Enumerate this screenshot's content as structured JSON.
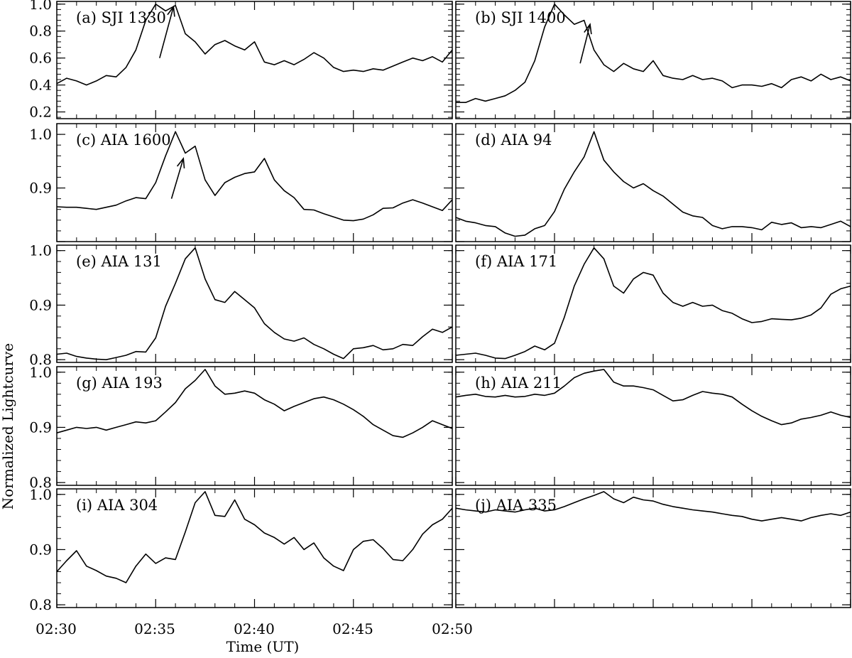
{
  "figure": {
    "ylabel": "Normalized Lightcurve",
    "xlabel": "Time (UT)",
    "x_ticks": [
      "02:30",
      "02:35",
      "02:40",
      "02:45",
      "02:50"
    ]
  },
  "chart_data": [
    {
      "panel": "a",
      "label": "(a) SJI 1330",
      "type": "line",
      "xlabel": "",
      "ylabel": "Normalized Lightcurve",
      "xlim": [
        0,
        20
      ],
      "ylim": [
        0.15,
        1.02
      ],
      "yticks": [
        0.2,
        0.4,
        0.6,
        0.8,
        1.0
      ],
      "ytick_labels": [
        "0.2",
        "0.4",
        "0.6",
        "0.8",
        "1.0"
      ],
      "x": [
        0,
        0.5,
        1,
        1.5,
        2,
        2.5,
        3,
        3.5,
        4,
        4.5,
        5,
        5.5,
        6,
        6.5,
        7,
        7.5,
        8,
        8.5,
        9,
        9.5,
        10,
        10.5,
        11,
        11.5,
        12,
        12.5,
        13,
        13.5,
        14,
        14.5,
        15,
        15.5,
        16,
        16.5,
        17,
        17.5,
        18,
        18.5,
        19,
        19.5,
        20
      ],
      "values": [
        0.41,
        0.45,
        0.43,
        0.4,
        0.43,
        0.47,
        0.46,
        0.53,
        0.66,
        0.88,
        1.0,
        0.95,
        0.99,
        0.78,
        0.72,
        0.63,
        0.7,
        0.73,
        0.69,
        0.66,
        0.72,
        0.57,
        0.55,
        0.58,
        0.55,
        0.59,
        0.64,
        0.6,
        0.53,
        0.5,
        0.51,
        0.5,
        0.52,
        0.51,
        0.54,
        0.57,
        0.6,
        0.58,
        0.61,
        0.57,
        0.66
      ],
      "annotations": [
        {
          "type": "arrow",
          "from": [
            5.2,
            0.6
          ],
          "to": [
            5.9,
            0.98
          ]
        }
      ]
    },
    {
      "panel": "b",
      "label": "(b) SJI 1400",
      "type": "line",
      "xlim": [
        0,
        20
      ],
      "ylim": [
        0.15,
        1.02
      ],
      "yticks": [
        0.2,
        0.4,
        0.6,
        0.8,
        1.0
      ],
      "ytick_labels": [
        "",
        "",
        "",
        "",
        ""
      ],
      "x": [
        0,
        0.5,
        1,
        1.5,
        2,
        2.5,
        3,
        3.5,
        4,
        4.5,
        5,
        5.5,
        6,
        6.5,
        7,
        7.5,
        8,
        8.5,
        9,
        9.5,
        10,
        10.5,
        11,
        11.5,
        12,
        12.5,
        13,
        13.5,
        14,
        14.5,
        15,
        15.5,
        16,
        16.5,
        17,
        17.5,
        18,
        18.5,
        19,
        19.5,
        20
      ],
      "values": [
        0.27,
        0.27,
        0.3,
        0.28,
        0.3,
        0.32,
        0.36,
        0.42,
        0.58,
        0.83,
        1.0,
        0.92,
        0.85,
        0.88,
        0.66,
        0.55,
        0.5,
        0.56,
        0.52,
        0.5,
        0.58,
        0.47,
        0.45,
        0.44,
        0.47,
        0.44,
        0.45,
        0.43,
        0.38,
        0.4,
        0.4,
        0.39,
        0.41,
        0.38,
        0.44,
        0.46,
        0.43,
        0.48,
        0.44,
        0.46,
        0.43
      ],
      "annotations": [
        {
          "type": "arrow",
          "from": [
            6.3,
            0.56
          ],
          "to": [
            6.8,
            0.85
          ]
        }
      ]
    },
    {
      "panel": "c",
      "label": "(c) AIA 1600",
      "type": "line",
      "xlim": [
        0,
        20
      ],
      "ylim": [
        0.8,
        1.02
      ],
      "yticks": [
        0.8,
        0.9,
        1.0
      ],
      "ytick_labels": [
        "",
        "0.9",
        "1.0"
      ],
      "x": [
        0,
        0.5,
        1,
        1.5,
        2,
        2.5,
        3,
        3.5,
        4,
        4.5,
        5,
        5.5,
        6,
        6.5,
        7,
        7.5,
        8,
        8.5,
        9,
        9.5,
        10,
        10.5,
        11,
        11.5,
        12,
        12.5,
        13,
        13.5,
        14,
        14.5,
        15,
        15.5,
        16,
        16.5,
        17,
        17.5,
        18,
        18.5,
        19,
        19.5,
        20
      ],
      "values": [
        0.865,
        0.864,
        0.864,
        0.862,
        0.86,
        0.864,
        0.868,
        0.876,
        0.882,
        0.88,
        0.91,
        0.96,
        1.005,
        0.965,
        0.978,
        0.915,
        0.886,
        0.91,
        0.92,
        0.927,
        0.93,
        0.955,
        0.915,
        0.895,
        0.882,
        0.86,
        0.859,
        0.852,
        0.846,
        0.84,
        0.839,
        0.842,
        0.85,
        0.862,
        0.863,
        0.872,
        0.878,
        0.872,
        0.865,
        0.858,
        0.878
      ],
      "annotations": [
        {
          "type": "arrow",
          "from": [
            5.8,
            0.88
          ],
          "to": [
            6.4,
            0.955
          ]
        }
      ]
    },
    {
      "panel": "d",
      "label": "(d) AIA 94",
      "type": "line",
      "xlim": [
        0,
        20
      ],
      "ylim": [
        0.8,
        1.02
      ],
      "yticks": [
        0.8,
        0.9,
        1.0
      ],
      "ytick_labels": [
        "",
        "",
        ""
      ],
      "x": [
        0,
        0.5,
        1,
        1.5,
        2,
        2.5,
        3,
        3.5,
        4,
        4.5,
        5,
        5.5,
        6,
        6.5,
        7,
        7.5,
        8,
        8.5,
        9,
        9.5,
        10,
        10.5,
        11,
        11.5,
        12,
        12.5,
        13,
        13.5,
        14,
        14.5,
        15,
        15.5,
        16,
        16.5,
        17,
        17.5,
        18,
        18.5,
        19,
        19.5,
        20
      ],
      "values": [
        0.845,
        0.838,
        0.835,
        0.83,
        0.828,
        0.816,
        0.81,
        0.812,
        0.824,
        0.83,
        0.856,
        0.898,
        0.93,
        0.958,
        1.005,
        0.952,
        0.93,
        0.912,
        0.9,
        0.908,
        0.895,
        0.885,
        0.87,
        0.855,
        0.848,
        0.845,
        0.83,
        0.824,
        0.828,
        0.828,
        0.826,
        0.822,
        0.836,
        0.832,
        0.835,
        0.826,
        0.828,
        0.826,
        0.832,
        0.838,
        0.828
      ],
      "annotations": []
    },
    {
      "panel": "e",
      "label": "(e) AIA 131",
      "type": "line",
      "xlim": [
        0,
        20
      ],
      "ylim": [
        0.795,
        1.01
      ],
      "yticks": [
        0.8,
        0.9,
        1.0
      ],
      "ytick_labels": [
        "0.8",
        "0.9",
        "1.0"
      ],
      "x": [
        0,
        0.5,
        1,
        1.5,
        2,
        2.5,
        3,
        3.5,
        4,
        4.5,
        5,
        5.5,
        6,
        6.5,
        7,
        7.5,
        8,
        8.5,
        9,
        9.5,
        10,
        10.5,
        11,
        11.5,
        12,
        12.5,
        13,
        13.5,
        14,
        14.5,
        15,
        15.5,
        16,
        16.5,
        17,
        17.5,
        18,
        18.5,
        19,
        19.5,
        20
      ],
      "values": [
        0.81,
        0.812,
        0.806,
        0.803,
        0.801,
        0.8,
        0.804,
        0.808,
        0.815,
        0.814,
        0.84,
        0.898,
        0.94,
        0.985,
        1.005,
        0.948,
        0.91,
        0.905,
        0.925,
        0.91,
        0.895,
        0.866,
        0.85,
        0.838,
        0.834,
        0.84,
        0.828,
        0.82,
        0.81,
        0.802,
        0.82,
        0.822,
        0.826,
        0.818,
        0.82,
        0.828,
        0.826,
        0.842,
        0.856,
        0.85,
        0.86
      ],
      "annotations": []
    },
    {
      "panel": "f",
      "label": "(f) AIA 171",
      "type": "line",
      "xlim": [
        0,
        20
      ],
      "ylim": [
        0.795,
        1.01
      ],
      "yticks": [
        0.8,
        0.9,
        1.0
      ],
      "ytick_labels": [
        "",
        "",
        ""
      ],
      "x": [
        0,
        0.5,
        1,
        1.5,
        2,
        2.5,
        3,
        3.5,
        4,
        4.5,
        5,
        5.5,
        6,
        6.5,
        7,
        7.5,
        8,
        8.5,
        9,
        9.5,
        10,
        10.5,
        11,
        11.5,
        12,
        12.5,
        13,
        13.5,
        14,
        14.5,
        15,
        15.5,
        16,
        16.5,
        17,
        17.5,
        18,
        18.5,
        19,
        19.5,
        20
      ],
      "values": [
        0.808,
        0.81,
        0.812,
        0.808,
        0.803,
        0.802,
        0.808,
        0.815,
        0.825,
        0.818,
        0.83,
        0.878,
        0.935,
        0.975,
        1.005,
        0.985,
        0.935,
        0.922,
        0.948,
        0.96,
        0.955,
        0.922,
        0.905,
        0.898,
        0.905,
        0.898,
        0.9,
        0.89,
        0.885,
        0.875,
        0.868,
        0.87,
        0.875,
        0.874,
        0.873,
        0.876,
        0.882,
        0.895,
        0.92,
        0.93,
        0.935
      ],
      "annotations": []
    },
    {
      "panel": "g",
      "label": "(g) AIA 193",
      "type": "line",
      "xlim": [
        0,
        20
      ],
      "ylim": [
        0.795,
        1.01
      ],
      "yticks": [
        0.8,
        0.9,
        1.0
      ],
      "ytick_labels": [
        "0.8",
        "0.9",
        "1.0"
      ],
      "x": [
        0,
        0.5,
        1,
        1.5,
        2,
        2.5,
        3,
        3.5,
        4,
        4.5,
        5,
        5.5,
        6,
        6.5,
        7,
        7.5,
        8,
        8.5,
        9,
        9.5,
        10,
        10.5,
        11,
        11.5,
        12,
        12.5,
        13,
        13.5,
        14,
        14.5,
        15,
        15.5,
        16,
        16.5,
        17,
        17.5,
        18,
        18.5,
        19,
        19.5,
        20
      ],
      "values": [
        0.89,
        0.895,
        0.9,
        0.898,
        0.9,
        0.895,
        0.9,
        0.905,
        0.91,
        0.908,
        0.912,
        0.928,
        0.945,
        0.97,
        0.985,
        1.005,
        0.975,
        0.96,
        0.962,
        0.966,
        0.962,
        0.95,
        0.942,
        0.93,
        0.938,
        0.945,
        0.952,
        0.955,
        0.95,
        0.942,
        0.932,
        0.92,
        0.905,
        0.895,
        0.885,
        0.882,
        0.89,
        0.9,
        0.912,
        0.905,
        0.898
      ],
      "annotations": []
    },
    {
      "panel": "h",
      "label": "(h) AIA 211",
      "type": "line",
      "xlim": [
        0,
        20
      ],
      "ylim": [
        0.795,
        1.01
      ],
      "yticks": [
        0.8,
        0.9,
        1.0
      ],
      "ytick_labels": [
        "",
        "",
        ""
      ],
      "x": [
        0,
        0.5,
        1,
        1.5,
        2,
        2.5,
        3,
        3.5,
        4,
        4.5,
        5,
        5.5,
        6,
        6.5,
        7,
        7.5,
        8,
        8.5,
        9,
        9.5,
        10,
        10.5,
        11,
        11.5,
        12,
        12.5,
        13,
        13.5,
        14,
        14.5,
        15,
        15.5,
        16,
        16.5,
        17,
        17.5,
        18,
        18.5,
        19,
        19.5,
        20
      ],
      "values": [
        0.955,
        0.958,
        0.96,
        0.956,
        0.955,
        0.958,
        0.955,
        0.956,
        0.96,
        0.958,
        0.962,
        0.975,
        0.99,
        0.998,
        1.002,
        1.005,
        0.982,
        0.975,
        0.975,
        0.972,
        0.968,
        0.958,
        0.948,
        0.95,
        0.958,
        0.965,
        0.962,
        0.96,
        0.955,
        0.942,
        0.93,
        0.92,
        0.912,
        0.905,
        0.908,
        0.915,
        0.918,
        0.922,
        0.928,
        0.922,
        0.918
      ],
      "annotations": []
    },
    {
      "panel": "i",
      "label": "(i) AIA 304",
      "type": "line",
      "xlim": [
        0,
        20
      ],
      "ylim": [
        0.795,
        1.01
      ],
      "yticks": [
        0.8,
        0.9,
        1.0
      ],
      "ytick_labels": [
        "0.8",
        "0.9",
        "1.0"
      ],
      "x": [
        0,
        0.5,
        1,
        1.5,
        2,
        2.5,
        3,
        3.5,
        4,
        4.5,
        5,
        5.5,
        6,
        6.5,
        7,
        7.5,
        8,
        8.5,
        9,
        9.5,
        10,
        10.5,
        11,
        11.5,
        12,
        12.5,
        13,
        13.5,
        14,
        14.5,
        15,
        15.5,
        16,
        16.5,
        17,
        17.5,
        18,
        18.5,
        19,
        19.5,
        20
      ],
      "values": [
        0.86,
        0.88,
        0.898,
        0.87,
        0.862,
        0.852,
        0.848,
        0.84,
        0.87,
        0.892,
        0.875,
        0.885,
        0.882,
        0.932,
        0.985,
        1.005,
        0.962,
        0.96,
        0.99,
        0.955,
        0.945,
        0.93,
        0.922,
        0.91,
        0.922,
        0.9,
        0.912,
        0.885,
        0.87,
        0.862,
        0.9,
        0.915,
        0.918,
        0.902,
        0.882,
        0.88,
        0.9,
        0.928,
        0.945,
        0.955,
        0.975
      ],
      "annotations": []
    },
    {
      "panel": "j",
      "label": "(j) AIA 335",
      "type": "line",
      "xlim": [
        0,
        20
      ],
      "ylim": [
        0.795,
        1.01
      ],
      "yticks": [
        0.8,
        0.9,
        1.0
      ],
      "ytick_labels": [
        "",
        "",
        ""
      ],
      "x": [
        0,
        0.5,
        1,
        1.5,
        2,
        2.5,
        3,
        3.5,
        4,
        4.5,
        5,
        5.5,
        6,
        6.5,
        7,
        7.5,
        8,
        8.5,
        9,
        9.5,
        10,
        10.5,
        11,
        11.5,
        12,
        12.5,
        13,
        13.5,
        14,
        14.5,
        15,
        15.5,
        16,
        16.5,
        17,
        17.5,
        18,
        18.5,
        19,
        19.5,
        20
      ],
      "values": [
        0.975,
        0.972,
        0.97,
        0.968,
        0.972,
        0.97,
        0.968,
        0.972,
        0.975,
        0.97,
        0.972,
        0.978,
        0.985,
        0.992,
        0.998,
        1.005,
        0.992,
        0.985,
        0.995,
        0.99,
        0.988,
        0.982,
        0.978,
        0.975,
        0.972,
        0.97,
        0.968,
        0.965,
        0.962,
        0.96,
        0.955,
        0.952,
        0.955,
        0.958,
        0.955,
        0.952,
        0.958,
        0.962,
        0.965,
        0.962,
        0.968
      ],
      "annotations": []
    }
  ]
}
